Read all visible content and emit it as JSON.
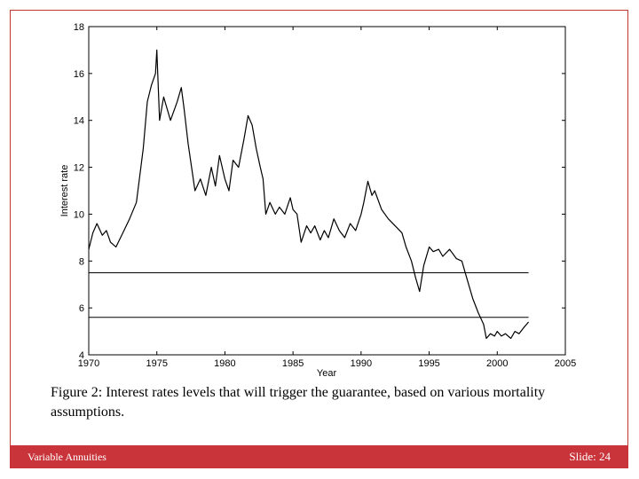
{
  "chart_data": {
    "type": "line",
    "title": "",
    "xlabel": "Year",
    "ylabel": "Interest rate",
    "xlim": [
      1970,
      2005
    ],
    "ylim": [
      4,
      18
    ],
    "xticks": [
      1970,
      1975,
      1980,
      1985,
      1990,
      1995,
      2000,
      2005
    ],
    "yticks": [
      4,
      6,
      8,
      10,
      12,
      14,
      16,
      18
    ],
    "grid": false,
    "x": [
      1970.0,
      1970.3,
      1970.6,
      1971.0,
      1971.3,
      1971.6,
      1972.0,
      1972.5,
      1973.0,
      1973.5,
      1974.0,
      1974.3,
      1974.6,
      1974.9,
      1975.0,
      1975.2,
      1975.5,
      1976.0,
      1976.5,
      1976.8,
      1977.0,
      1977.3,
      1977.8,
      1978.2,
      1978.6,
      1979.0,
      1979.3,
      1979.6,
      1980.0,
      1980.3,
      1980.6,
      1981.0,
      1981.4,
      1981.7,
      1982.0,
      1982.3,
      1982.6,
      1982.8,
      1983.0,
      1983.3,
      1983.7,
      1984.0,
      1984.4,
      1984.8,
      1985.0,
      1985.3,
      1985.6,
      1986.0,
      1986.3,
      1986.6,
      1987.0,
      1987.3,
      1987.6,
      1988.0,
      1988.4,
      1988.8,
      1989.2,
      1989.6,
      1990.0,
      1990.2,
      1990.5,
      1990.8,
      1991.0,
      1991.5,
      1992.0,
      1992.5,
      1993.0,
      1993.3,
      1993.7,
      1994.0,
      1994.3,
      1994.6,
      1995.0,
      1995.3,
      1995.7,
      1996.0,
      1996.5,
      1997.0,
      1997.4,
      1997.8,
      1998.2,
      1998.6,
      1999.0,
      1999.2,
      1999.5,
      1999.8,
      2000.0,
      2000.3,
      2000.6,
      2001.0,
      2001.3,
      2001.6,
      2002.0,
      2002.3
    ],
    "series": [
      {
        "values": [
          8.5,
          9.2,
          9.6,
          9.1,
          9.3,
          8.8,
          8.6,
          9.2,
          9.8,
          10.5,
          12.8,
          14.8,
          15.5,
          16.0,
          17.0,
          14.0,
          15.0,
          14.0,
          14.8,
          15.4,
          14.5,
          13.0,
          11.0,
          11.5,
          10.8,
          12.0,
          11.2,
          12.5,
          11.5,
          11.0,
          12.3,
          12.0,
          13.2,
          14.2,
          13.8,
          12.8,
          12.0,
          11.5,
          10.0,
          10.5,
          10.0,
          10.3,
          10.0,
          10.7,
          10.2,
          10.0,
          8.8,
          9.5,
          9.2,
          9.5,
          8.9,
          9.3,
          9.0,
          9.8,
          9.3,
          9.0,
          9.6,
          9.3,
          10.0,
          10.5,
          11.4,
          10.8,
          11.0,
          10.2,
          9.8,
          9.5,
          9.2,
          8.6,
          8.0,
          7.3,
          6.7,
          7.8,
          8.6,
          8.4,
          8.5,
          8.2,
          8.5,
          8.1,
          8.0,
          7.2,
          6.4,
          5.8,
          5.3,
          4.7,
          4.9,
          4.8,
          5.0,
          4.8,
          4.9,
          4.7,
          5.0,
          4.9,
          5.2,
          5.4
        ]
      }
    ],
    "hlines": [
      7.5,
      5.6
    ],
    "hline_x_end": 2002.3
  },
  "caption": "Figure 2: Interest rates levels that will trigger the guarantee, based on various mortality assumptions.",
  "footer": {
    "left": "Variable Annuities",
    "right": "Slide: 24"
  },
  "colors": {
    "frame": "#c0392b",
    "footer_bg": "#c8343a"
  }
}
